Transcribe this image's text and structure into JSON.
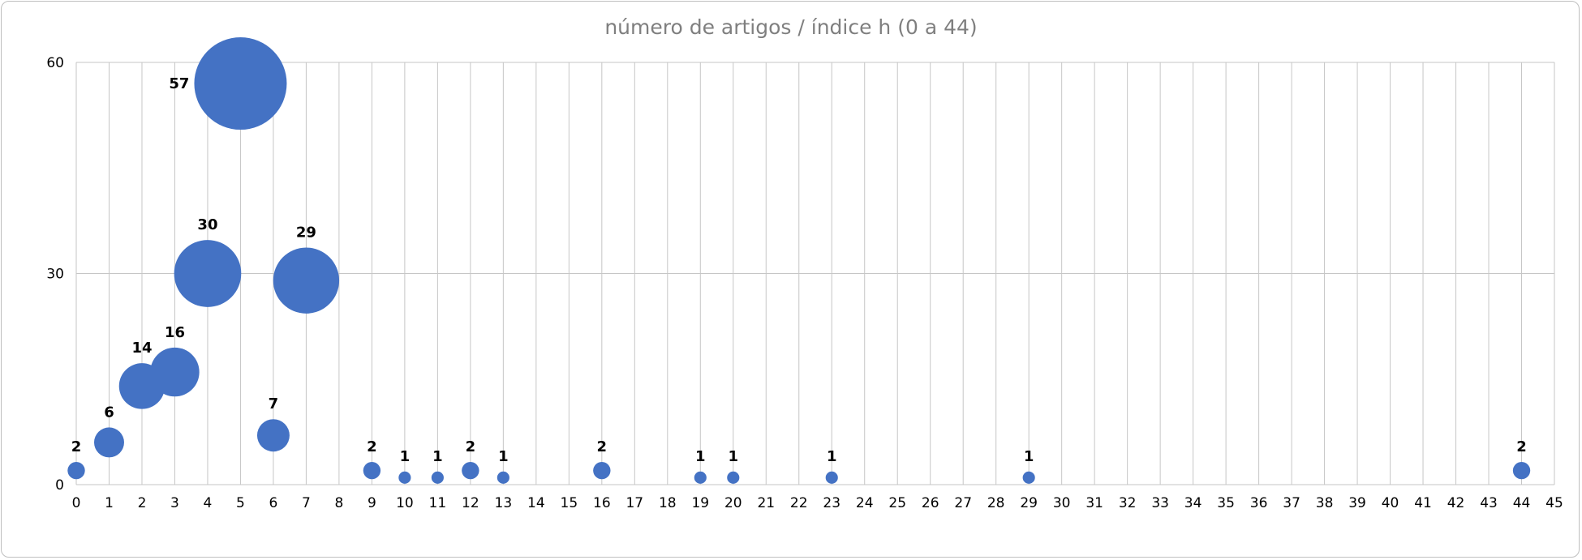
{
  "chart_data": {
    "type": "bubble",
    "title": "número de artigos / índice h (0 a 44)",
    "xlabel": "",
    "ylabel": "",
    "xlim": [
      0,
      45
    ],
    "ylim": [
      0,
      60
    ],
    "x_ticks": [
      0,
      1,
      2,
      3,
      4,
      5,
      6,
      7,
      8,
      9,
      10,
      11,
      12,
      13,
      14,
      15,
      16,
      17,
      18,
      19,
      20,
      21,
      22,
      23,
      24,
      25,
      26,
      27,
      28,
      29,
      30,
      31,
      32,
      33,
      34,
      35,
      36,
      37,
      38,
      39,
      40,
      41,
      42,
      43,
      44,
      45
    ],
    "y_ticks": [
      0,
      30,
      60
    ],
    "grid": true,
    "color": "#4472c4",
    "points": [
      {
        "x": 0,
        "y": 2,
        "size": 2,
        "label": "2"
      },
      {
        "x": 1,
        "y": 6,
        "size": 6,
        "label": "6"
      },
      {
        "x": 2,
        "y": 14,
        "size": 14,
        "label": "14"
      },
      {
        "x": 3,
        "y": 16,
        "size": 16,
        "label": "16"
      },
      {
        "x": 4,
        "y": 30,
        "size": 30,
        "label": "30"
      },
      {
        "x": 5,
        "y": 57,
        "size": 57,
        "label": "57"
      },
      {
        "x": 6,
        "y": 7,
        "size": 7,
        "label": "7"
      },
      {
        "x": 7,
        "y": 29,
        "size": 29,
        "label": "29"
      },
      {
        "x": 9,
        "y": 2,
        "size": 2,
        "label": "2"
      },
      {
        "x": 10,
        "y": 1,
        "size": 1,
        "label": "1"
      },
      {
        "x": 11,
        "y": 1,
        "size": 1,
        "label": "1"
      },
      {
        "x": 12,
        "y": 2,
        "size": 2,
        "label": "2"
      },
      {
        "x": 13,
        "y": 1,
        "size": 1,
        "label": "1"
      },
      {
        "x": 16,
        "y": 2,
        "size": 2,
        "label": "2"
      },
      {
        "x": 19,
        "y": 1,
        "size": 1,
        "label": "1"
      },
      {
        "x": 20,
        "y": 1,
        "size": 1,
        "label": "1"
      },
      {
        "x": 23,
        "y": 1,
        "size": 1,
        "label": "1"
      },
      {
        "x": 29,
        "y": 1,
        "size": 1,
        "label": "1"
      },
      {
        "x": 44,
        "y": 2,
        "size": 2,
        "label": "2"
      }
    ]
  }
}
